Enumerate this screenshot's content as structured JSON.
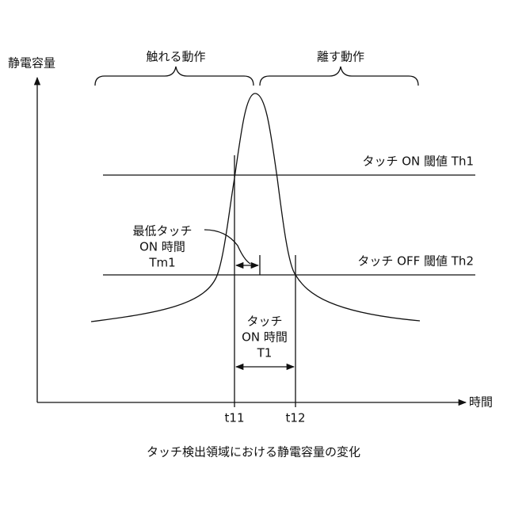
{
  "axes": {
    "y_label": "静電容量",
    "x_label": "時間"
  },
  "phases": [
    "触れる動作",
    "離す動作"
  ],
  "thresholds": [
    "タッチ ON 閾値 Th1",
    "タッチ OFF 閾値 Th2"
  ],
  "min_on_time": [
    "最低タッチ",
    "ON 時間",
    "Tm1"
  ],
  "on_time": [
    "タッチ",
    "ON 時間",
    "T1"
  ],
  "time_marks": [
    "t11",
    "t12"
  ],
  "caption": "タッチ検出領域における静電容量の変化"
}
